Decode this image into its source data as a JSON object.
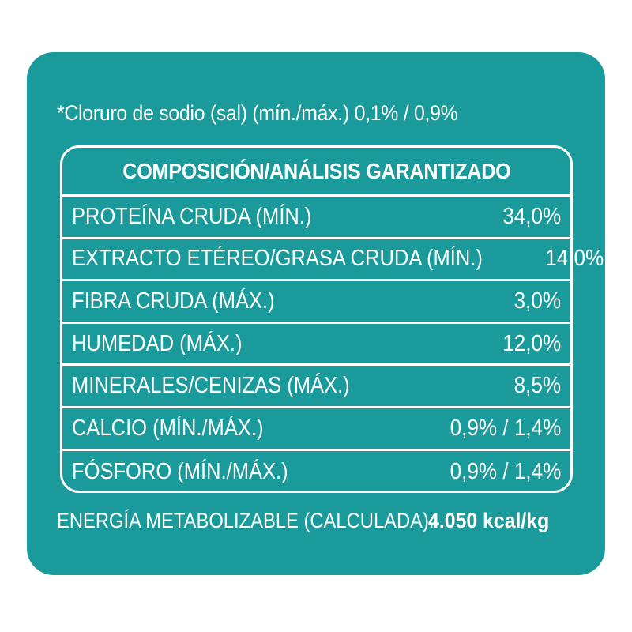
{
  "note": "*Cloruro de sodio (sal) (mín./máx.) 0,1% / 0,9%",
  "table": {
    "header": "COMPOSICIÓN/ANÁLISIS GARANTIZADO",
    "rows": [
      {
        "label": "PROTEÍNA CRUDA (MÍN.)",
        "value": "34,0%"
      },
      {
        "label": "EXTRACTO ETÉREO/GRASA CRUDA (MÍN.)",
        "value": "14,0%"
      },
      {
        "label": "FIBRA CRUDA (MÁX.)",
        "value": "3,0%"
      },
      {
        "label": "HUMEDAD (MÁX.)",
        "value": "12,0%"
      },
      {
        "label": "MINERALES/CENIZAS (MÁX.)",
        "value": "8,5%"
      },
      {
        "label": "CALCIO (MÍN./MÁX.)",
        "value": "0,9% / 1,4%"
      },
      {
        "label": "FÓSFORO (MÍN./MÁX.)",
        "value": "0,9% / 1,4%"
      }
    ]
  },
  "energy": {
    "label": "ENERGÍA METABOLIZABLE (CALCULADA):",
    "value": "4.050 kcal/kg"
  },
  "colors": {
    "panel": "#1a9a9a",
    "text": "#ffffff"
  }
}
